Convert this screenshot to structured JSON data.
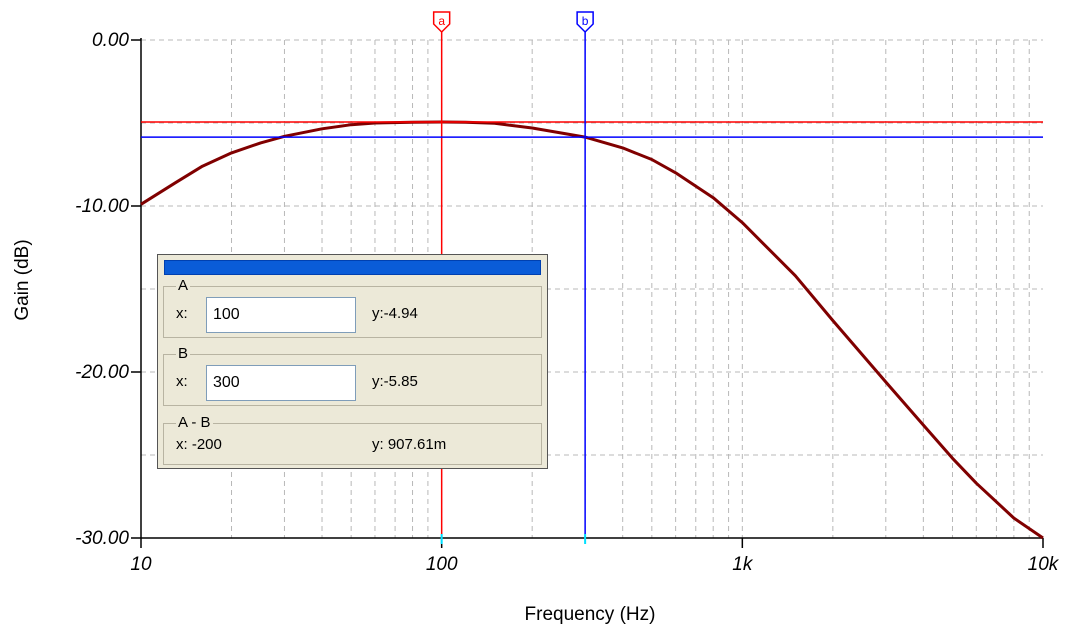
{
  "chart_data": {
    "type": "line",
    "title": "",
    "xlabel": "Frequency (Hz)",
    "ylabel": "Gain (dB)",
    "x_scale": "log",
    "xlim": [
      10,
      10000
    ],
    "ylim": [
      -30,
      0
    ],
    "x_ticks": [
      {
        "value": 10,
        "label": "10"
      },
      {
        "value": 100,
        "label": "100"
      },
      {
        "value": 1000,
        "label": "1k"
      },
      {
        "value": 10000,
        "label": "10k"
      }
    ],
    "y_ticks": [
      {
        "value": 0,
        "label": "0.00"
      },
      {
        "value": -10,
        "label": "-10.00"
      },
      {
        "value": -20,
        "label": "-20.00"
      },
      {
        "value": -30,
        "label": "-30.00"
      }
    ],
    "grid": true,
    "series": [
      {
        "color": "#800000",
        "x": [
          10,
          13,
          16,
          20,
          25,
          30,
          40,
          50,
          60,
          80,
          100,
          120,
          150,
          200,
          250,
          300,
          400,
          500,
          600,
          800,
          1000,
          1500,
          2000,
          3000,
          4000,
          5000,
          6000,
          8000,
          10000
        ],
        "y": [
          -9.9,
          -8.6,
          -7.6,
          -6.8,
          -6.2,
          -5.8,
          -5.35,
          -5.1,
          -5.0,
          -4.95,
          -4.94,
          -4.95,
          -5.02,
          -5.3,
          -5.6,
          -5.85,
          -6.5,
          -7.2,
          -8.0,
          -9.5,
          -11.0,
          -14.2,
          -16.9,
          -20.6,
          -23.2,
          -25.2,
          -26.7,
          -28.8,
          -30.0
        ]
      }
    ],
    "cursors": [
      {
        "label": "a",
        "x": 100,
        "y": -4.94,
        "color": "#ff0000"
      },
      {
        "label": "b",
        "x": 300,
        "y": -5.85,
        "color": "#0000ff"
      }
    ]
  },
  "readout": {
    "a_title": "A",
    "a_x_label": "x:",
    "a_x_value": "100",
    "a_y_text": "y:-4.94",
    "b_title": "B",
    "b_x_label": "x:",
    "b_x_value": "300",
    "b_y_text": "y:-5.85",
    "diff_title": "A - B",
    "diff_x_text": "x:  -200",
    "diff_y_text": "y: 907.61m"
  }
}
